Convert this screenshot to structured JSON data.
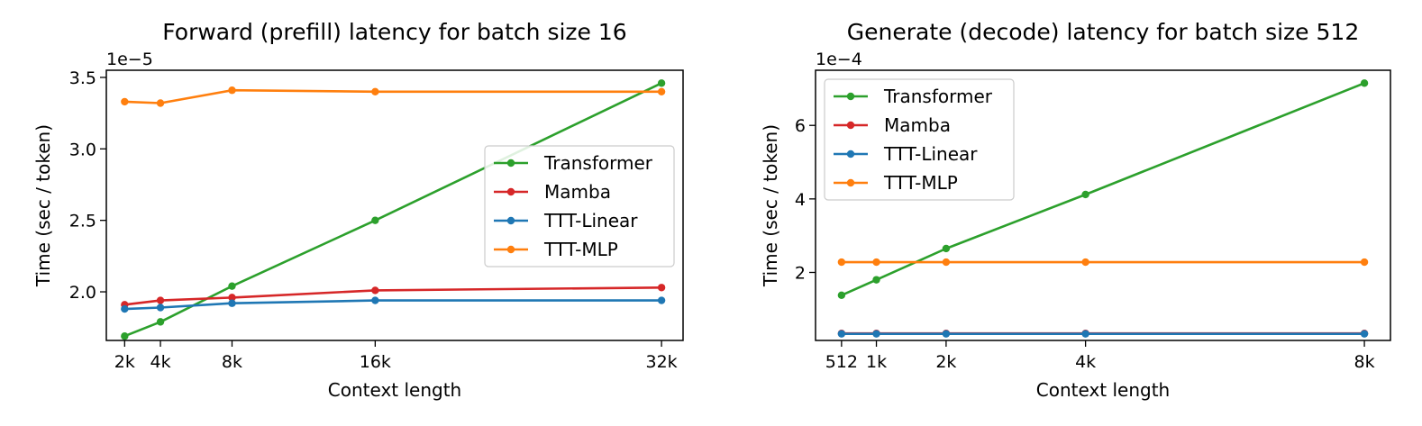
{
  "colors": {
    "Transformer": "#2ca02c",
    "Mamba": "#d62728",
    "TTT-Linear": "#1f77b4",
    "TTT-MLP": "#ff7f0e"
  },
  "chart_data": [
    {
      "type": "line",
      "title": "Forward (prefill) latency for batch size 16",
      "xlabel": "Context length",
      "ylabel": "Time (sec / token)",
      "y_offset_label": "1e−5",
      "y_scale_factor": 1e-05,
      "x": [
        2048,
        4096,
        8192,
        16384,
        32768
      ],
      "x_tick_values": [
        2048,
        4096,
        8192,
        16384,
        32768
      ],
      "x_tick_labels": [
        "2k",
        "4k",
        "8k",
        "16k",
        "32k"
      ],
      "xlim": [
        1000,
        34000
      ],
      "y_tick_values": [
        2.0,
        2.5,
        3.0,
        3.5
      ],
      "y_tick_labels": [
        "2.0",
        "2.5",
        "3.0",
        "3.5"
      ],
      "ylim": [
        1.66,
        3.55
      ],
      "grid": false,
      "legend_position": "center-right",
      "series": [
        {
          "name": "Transformer",
          "values": [
            1.69,
            1.79,
            2.04,
            2.5,
            3.46
          ]
        },
        {
          "name": "Mamba",
          "values": [
            1.91,
            1.94,
            1.96,
            2.01,
            2.03
          ]
        },
        {
          "name": "TTT-Linear",
          "values": [
            1.88,
            1.89,
            1.92,
            1.94,
            1.94
          ]
        },
        {
          "name": "TTT-MLP",
          "values": [
            3.33,
            3.32,
            3.41,
            3.4,
            3.4
          ]
        }
      ]
    },
    {
      "type": "line",
      "title": "Generate (decode) latency for batch size 512",
      "xlabel": "Context length",
      "ylabel": "Time (sec / token)",
      "y_offset_label": "1e−4",
      "y_scale_factor": 0.0001,
      "x": [
        512,
        1024,
        2048,
        4096,
        8192
      ],
      "x_tick_values": [
        512,
        1024,
        2048,
        4096,
        8192
      ],
      "x_tick_labels": [
        "512",
        "1k",
        "2k",
        "4k",
        "8k"
      ],
      "xlim": [
        130,
        8575
      ],
      "y_tick_values": [
        2,
        4,
        6
      ],
      "y_tick_labels": [
        "2",
        "4",
        "6"
      ],
      "ylim": [
        0.15,
        7.5
      ],
      "grid": false,
      "legend_position": "top-left",
      "series": [
        {
          "name": "Transformer",
          "values": [
            1.38,
            1.8,
            2.65,
            4.12,
            7.15
          ]
        },
        {
          "name": "Mamba",
          "values": [
            0.34,
            0.34,
            0.34,
            0.34,
            0.34
          ]
        },
        {
          "name": "TTT-Linear",
          "values": [
            0.33,
            0.33,
            0.33,
            0.33,
            0.33
          ]
        },
        {
          "name": "TTT-MLP",
          "values": [
            2.28,
            2.28,
            2.28,
            2.28,
            2.28
          ]
        }
      ]
    }
  ]
}
